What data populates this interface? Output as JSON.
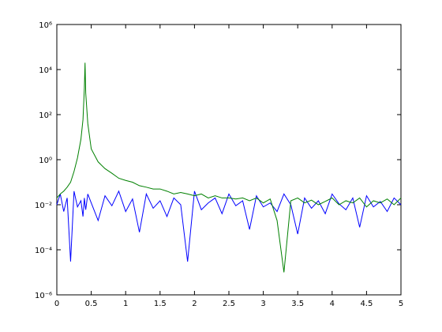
{
  "chart_data": {
    "type": "line",
    "yscale": "log",
    "grid": false,
    "xlim": [
      0,
      5
    ],
    "ylim": [
      1e-06,
      1000000
    ],
    "xticks": [
      0,
      0.5,
      1,
      1.5,
      2,
      2.5,
      3,
      3.5,
      4,
      4.5,
      5
    ],
    "yticks": [
      {
        "value": 1e-06,
        "label": "10⁻⁶"
      },
      {
        "value": 0.0001,
        "label": "10⁻⁴"
      },
      {
        "value": 0.01,
        "label": "10⁻²"
      },
      {
        "value": 1,
        "label": "10⁰"
      },
      {
        "value": 100,
        "label": "10²"
      },
      {
        "value": 10000,
        "label": "10⁴"
      },
      {
        "value": 1000000,
        "label": "10⁶"
      }
    ],
    "x": [
      0,
      0.05,
      0.1,
      0.15,
      0.2,
      0.25,
      0.3,
      0.35,
      0.38,
      0.4,
      0.41,
      0.42,
      0.45,
      0.5,
      0.6,
      0.7,
      0.8,
      0.9,
      1.0,
      1.1,
      1.2,
      1.3,
      1.4,
      1.5,
      1.6,
      1.7,
      1.8,
      1.9,
      2.0,
      2.1,
      2.2,
      2.3,
      2.4,
      2.5,
      2.6,
      2.7,
      2.8,
      2.9,
      3.0,
      3.1,
      3.2,
      3.3,
      3.4,
      3.5,
      3.6,
      3.7,
      3.8,
      3.9,
      4.0,
      4.1,
      4.2,
      4.3,
      4.4,
      4.5,
      4.6,
      4.7,
      4.8,
      4.9,
      5.0
    ],
    "series": [
      {
        "color": "#0000ff",
        "values": [
          0.01,
          0.03,
          0.005,
          0.02,
          3e-05,
          0.04,
          0.008,
          0.015,
          0.003,
          0.02,
          0.01,
          0.006,
          0.03,
          0.012,
          0.002,
          0.025,
          0.009,
          0.04,
          0.005,
          0.018,
          0.0006,
          0.03,
          0.007,
          0.015,
          0.003,
          0.02,
          0.01,
          3e-05,
          0.04,
          0.006,
          0.012,
          0.02,
          0.004,
          0.03,
          0.009,
          0.015,
          0.0008,
          0.025,
          0.008,
          0.012,
          0.005,
          0.03,
          0.01,
          0.0005,
          0.02,
          0.007,
          0.015,
          0.004,
          0.03,
          0.011,
          0.006,
          0.02,
          0.001,
          0.025,
          0.008,
          0.014,
          0.005,
          0.02,
          0.01
        ]
      },
      {
        "color": "#008000",
        "values": [
          0.02,
          0.03,
          0.04,
          0.06,
          0.1,
          0.3,
          1.2,
          8,
          60,
          1500,
          20000,
          900,
          40,
          3,
          0.8,
          0.4,
          0.25,
          0.15,
          0.12,
          0.1,
          0.07,
          0.06,
          0.05,
          0.05,
          0.04,
          0.03,
          0.035,
          0.03,
          0.025,
          0.03,
          0.02,
          0.025,
          0.02,
          0.02,
          0.018,
          0.02,
          0.015,
          0.02,
          0.012,
          0.018,
          0.002,
          1e-05,
          0.015,
          0.02,
          0.012,
          0.016,
          0.01,
          0.014,
          0.02,
          0.01,
          0.015,
          0.012,
          0.02,
          0.008,
          0.015,
          0.012,
          0.018,
          0.01,
          0.02
        ]
      }
    ]
  }
}
